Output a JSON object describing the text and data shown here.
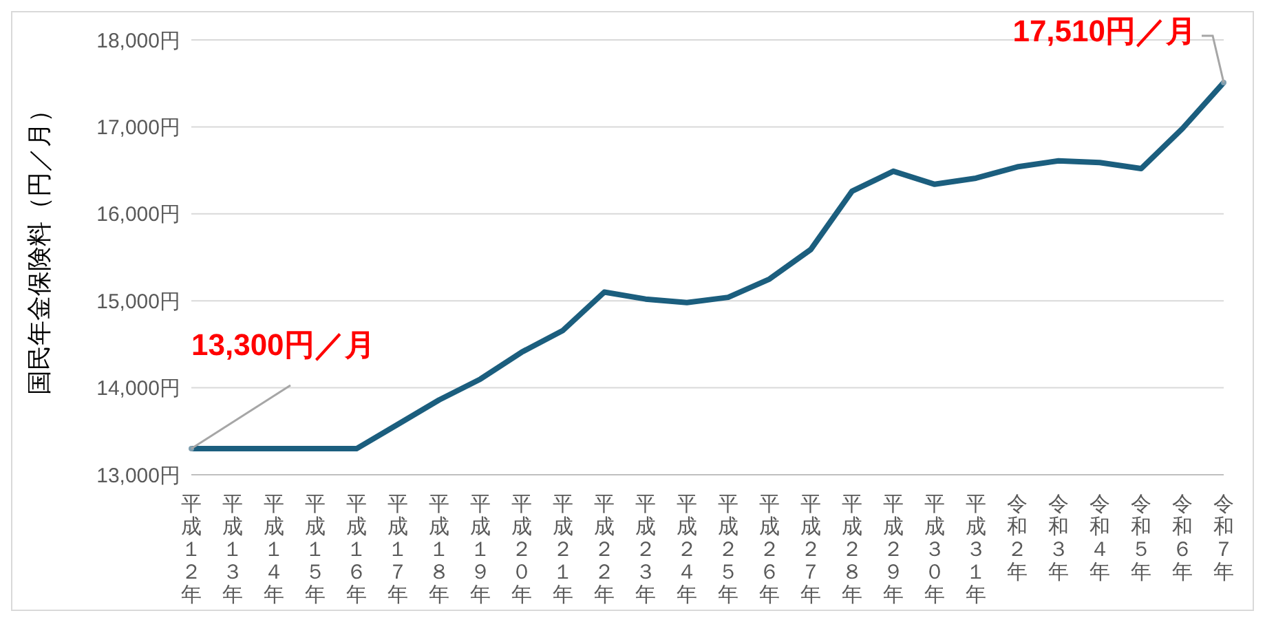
{
  "chart_data": {
    "type": "line",
    "ylabel": "国民年金保険料（円／月）",
    "categories": [
      "平成１２年",
      "平成１３年",
      "平成１４年",
      "平成１５年",
      "平成１６年",
      "平成１７年",
      "平成１８年",
      "平成１９年",
      "平成２０年",
      "平成２１年",
      "平成２２年",
      "平成２３年",
      "平成２４年",
      "平成２５年",
      "平成２６年",
      "平成２７年",
      "平成２８年",
      "平成２９年",
      "平成３０年",
      "平成３１年",
      "令和２年",
      "令和３年",
      "令和４年",
      "令和５年",
      "令和６年",
      "令和７年"
    ],
    "series": [
      {
        "color": "#1b5e7e",
        "values": [
          13300,
          13300,
          13300,
          13300,
          13300,
          13580,
          13860,
          14100,
          14410,
          14660,
          15100,
          15020,
          14980,
          15040,
          15250,
          15590,
          16260,
          16490,
          16340,
          16410,
          16540,
          16610,
          16590,
          16520,
          16980,
          17510
        ]
      }
    ],
    "ylim": [
      13000,
      18000
    ],
    "yticks": [
      {
        "value": 13000,
        "label": "13,000円"
      },
      {
        "value": 14000,
        "label": "14,000円"
      },
      {
        "value": 15000,
        "label": "15,000円"
      },
      {
        "value": 16000,
        "label": "16,000円"
      },
      {
        "value": 17000,
        "label": "17,000円"
      },
      {
        "value": 18000,
        "label": "18,000円"
      }
    ],
    "grid": "y",
    "marker": "none",
    "line_style": "solid",
    "legend": false,
    "annotations": [
      {
        "text": "13,300円／月",
        "x": "平成１２年",
        "y": 13300
      },
      {
        "text": "17,510円／月",
        "x": "令和７年",
        "y": 17510
      }
    ]
  }
}
